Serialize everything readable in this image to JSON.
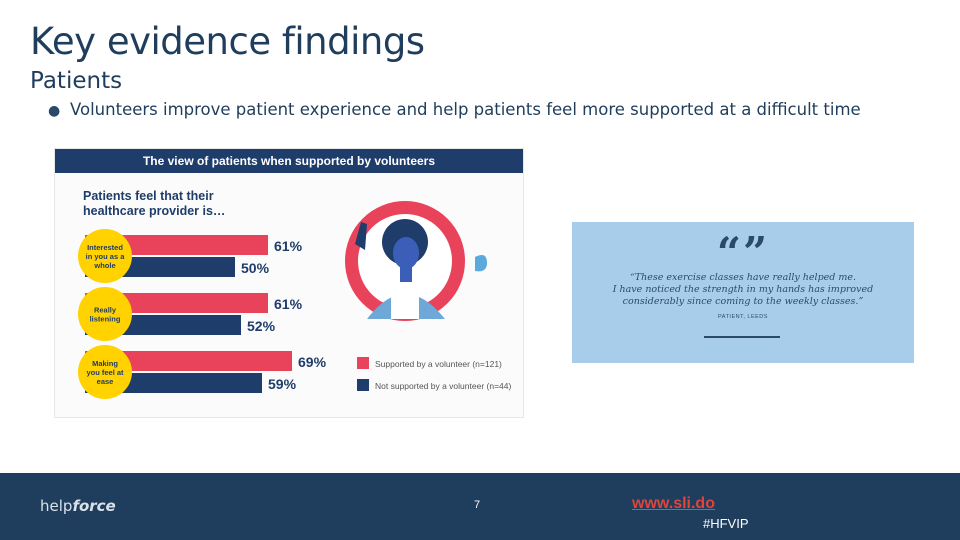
{
  "slide": {
    "title": "Key evidence findings",
    "subtitle": "Patients",
    "bullet": "Volunteers improve patient experience and help patients feel more supported at a difficult time"
  },
  "infographic": {
    "header": "The view of patients when supported by volunteers",
    "question": "Patients feel that their healthcare provider is…",
    "colors": {
      "volunteer": "#e8435a",
      "no_volunteer": "#1f3d6a",
      "badge": "#ffd200",
      "header": "#1f3d6a"
    },
    "legend": [
      {
        "label": "Supported by a volunteer (n=121)",
        "color": "#e8435a"
      },
      {
        "label": "Not supported by a volunteer (n=44)",
        "color": "#1f3d6a"
      }
    ],
    "illustration": "volunteer-illustration-icon"
  },
  "chart_data": {
    "type": "bar",
    "orientation": "horizontal",
    "categories": [
      "Interested in you as a whole",
      "Really listening",
      "Making you feel at ease"
    ],
    "series": [
      {
        "name": "Supported by a volunteer (n=121)",
        "values": [
          61,
          61,
          69
        ],
        "labels": [
          "61%",
          "61%",
          "69%"
        ]
      },
      {
        "name": "Not supported by a volunteer (n=44)",
        "values": [
          50,
          52,
          59
        ],
        "labels": [
          "50%",
          "52%",
          "59%"
        ]
      }
    ],
    "title": "The view of patients when supported by volunteers",
    "legend": "bottom-right"
  },
  "quote": {
    "marks": "“”",
    "line1": "“These exercise classes have really helped me.",
    "line2": "I have noticed the strength in my hands has improved",
    "line3": "considerably since coming to the weekly classes.”",
    "source": "PATIENT, LEEDS"
  },
  "footer": {
    "logo_help": "help",
    "logo_force": "force",
    "page_number": "7",
    "link": "www.sli.do",
    "hashtag": "#HFVIP"
  }
}
